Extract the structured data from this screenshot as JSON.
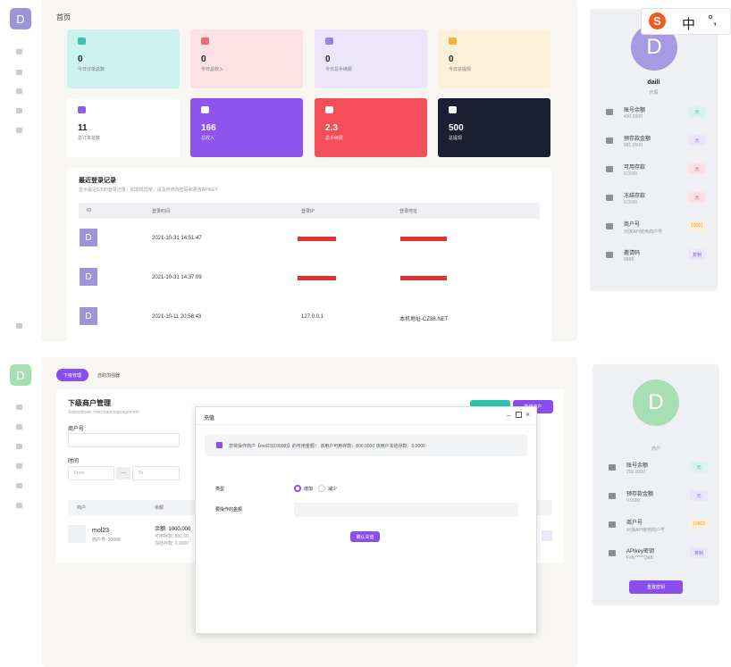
{
  "top": {
    "brand_letter": "D",
    "page_title": "首页",
    "cards": [
      {
        "value": "0",
        "label": "今日订单总数",
        "bg": "#ccf3ee",
        "icon": "#3cc4b0"
      },
      {
        "value": "0",
        "label": "今日总收入",
        "bg": "#fde1e4",
        "icon": "#ee6a7a"
      },
      {
        "value": "0",
        "label": "今日总手续费",
        "bg": "#ebe6fb",
        "icon": "#9b83e6"
      },
      {
        "value": "0",
        "label": "今日总提现",
        "bg": "#fdf0d8",
        "icon": "#f3b33d"
      },
      {
        "value": "11",
        "label": "总订单总数",
        "bg": "#ffffff",
        "icon": "#8a60e6"
      },
      {
        "value": "166",
        "label": "总收入",
        "bg": "#8f54ee",
        "icon": "#ffffff"
      },
      {
        "value": "2.3",
        "label": "总手续费",
        "bg": "#f44d5b",
        "icon": "#ffffff"
      },
      {
        "value": "500",
        "label": "总提现",
        "bg": "#1c1e33",
        "icon": "#ffffff"
      }
    ],
    "login": {
      "title": "最近登录记录",
      "subtitle": "显示最近5次的登录记录，如发现异常，请及时修改密码和更改APIKEY",
      "headers": [
        "ID",
        "登录时间",
        "登录IP",
        "登录地址"
      ],
      "rows": [
        {
          "avatar": "D",
          "time": "2021-10-31 14:51:47",
          "ip": "",
          "addr": ""
        },
        {
          "avatar": "D",
          "time": "2021-10-31 14:37:09",
          "ip": "",
          "addr": ""
        },
        {
          "avatar": "D",
          "time": "2021-10-11 20:58:43",
          "ip": "127.0.0.1",
          "addr": "本机地址-CZ88.NET"
        }
      ]
    },
    "profile": {
      "avatar": "D",
      "name": "daili",
      "role": "代理",
      "rows": [
        {
          "title": "账号余额",
          "sub": "400.0000",
          "badge": "元",
          "badge_bg": "#d6f5ef",
          "badge_fg": "#2bb59a"
        },
        {
          "title": "预存款金额",
          "sub": "681.9500",
          "badge": "元",
          "badge_bg": "#ece6fb",
          "badge_fg": "#8a60e6"
        },
        {
          "title": "可用存款",
          "sub": "0.0000",
          "badge": "元",
          "badge_bg": "#fde1e4",
          "badge_fg": "#e64757"
        },
        {
          "title": "冻结存款",
          "sub": "0.0000",
          "badge": "元",
          "badge_bg": "#fde1e4",
          "badge_fg": "#e64757"
        },
        {
          "title": "商户号",
          "sub": "对接API使用商户号",
          "badge": "10001",
          "badge_bg": "#fdf0d8",
          "badge_fg": "#e6a02b"
        },
        {
          "title": "邀请码",
          "sub": "8888",
          "badge": "复制",
          "badge_bg": "#ece6fb",
          "badge_fg": "#8a60e6"
        }
      ]
    }
  },
  "ime": {
    "s": "S",
    "mode": "中",
    "punct": "°,"
  },
  "bottom": {
    "brand_letter": "D",
    "tabs": [
      "下级管理",
      "自助加强器"
    ],
    "section_title": "下级商户管理",
    "section_sub": "Subordinate merchant management",
    "merchant_label": "商户号",
    "time_label": "时间",
    "from_placeholder": "From",
    "dash": "—",
    "to_placeholder": "To",
    "col_merchant": "商户",
    "col_balance": "余额",
    "row": {
      "name": "mol23",
      "id_line": "商户号: 10008",
      "balance": "余额: 1000.000",
      "avail": "可用存款: 800.00",
      "frozen": "冻结存款: 0.0000"
    },
    "btn_new_agent": "",
    "btn_new_merchant": "新增商户",
    "profile": {
      "avatar": "D",
      "role": "商户",
      "rows": [
        {
          "title": "账号余额",
          "sub": "200.0000",
          "badge": "元",
          "badge_bg": "#d6f5ef",
          "badge_fg": "#2bb59a"
        },
        {
          "title": "预存款金额",
          "sub": "0.0000",
          "badge": "元",
          "badge_bg": "#ece6fb",
          "badge_fg": "#8a60e6"
        },
        {
          "title": "商户号",
          "sub": "对接API使用商户号",
          "badge": "10003",
          "badge_bg": "#fdf0d8",
          "badge_fg": "#e6a02b"
        },
        {
          "title": "APIkey密钥",
          "sub": "Fdfy*****Q&B",
          "badge": "复制",
          "badge_bg": "#ece6fb",
          "badge_fg": "#8a60e6"
        }
      ],
      "reset_label": "重置密钥"
    },
    "modal": {
      "title": "充值",
      "notice": "您将操作商户【mol23(10008)】的可用金额！ 该用户可用存款：800.0000 该用户冻结存款：0.0000",
      "type_label": "类型",
      "opt_add": "增加",
      "opt_sub": "减少",
      "amount_label": "要操作的金额",
      "submit": "确认充值"
    }
  }
}
